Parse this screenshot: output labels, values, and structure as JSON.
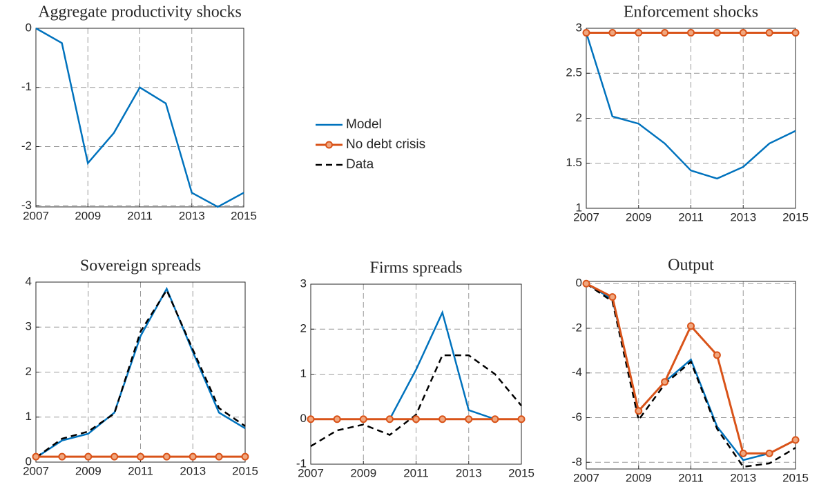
{
  "chart_data": [
    {
      "type": "line",
      "title": "Aggregate productivity shocks",
      "x": [
        2007,
        2008,
        2009,
        2010,
        2011,
        2012,
        2013,
        2014,
        2015
      ],
      "series": [
        {
          "name": "Model",
          "color": "#0072bd",
          "values": [
            0,
            -0.25,
            -2.28,
            -1.77,
            -1.0,
            -1.27,
            -2.78,
            -3.02,
            -2.78
          ]
        }
      ],
      "xlim": [
        2007,
        2015
      ],
      "xticks": [
        2007,
        2009,
        2011,
        2013,
        2015
      ],
      "ylim": [
        -3.02,
        0
      ],
      "yticks": [
        -3,
        -2,
        -1,
        0
      ],
      "grid": true
    },
    {
      "type": "line",
      "title": "Enforcement shocks",
      "x": [
        2007,
        2008,
        2009,
        2010,
        2011,
        2012,
        2013,
        2014,
        2015
      ],
      "series": [
        {
          "name": "Model",
          "color": "#0072bd",
          "values": [
            2.95,
            2.02,
            1.94,
            1.72,
            1.42,
            1.33,
            1.46,
            1.72,
            1.86
          ]
        },
        {
          "name": "No debt crisis",
          "color": "#d95319",
          "marker": "o",
          "values": [
            2.95,
            2.95,
            2.95,
            2.95,
            2.95,
            2.95,
            2.95,
            2.95,
            2.95
          ]
        }
      ],
      "xlim": [
        2007,
        2015
      ],
      "xticks": [
        2007,
        2009,
        2011,
        2013,
        2015
      ],
      "ylim": [
        1,
        3
      ],
      "yticks": [
        1,
        1.5,
        2,
        2.5,
        3
      ],
      "grid": true
    },
    {
      "type": "line",
      "title": "Sovereign spreads",
      "x": [
        2007,
        2008,
        2009,
        2010,
        2011,
        2012,
        2013,
        2014,
        2015
      ],
      "series": [
        {
          "name": "Model",
          "color": "#0072bd",
          "values": [
            0.1,
            0.48,
            0.63,
            1.1,
            2.8,
            3.85,
            2.45,
            1.1,
            0.75
          ]
        },
        {
          "name": "No debt crisis",
          "color": "#d95319",
          "marker": "o",
          "values": [
            0.12,
            0.12,
            0.12,
            0.12,
            0.12,
            0.12,
            0.12,
            0.12,
            0.12
          ]
        },
        {
          "name": "Data",
          "color": "#000000",
          "dash": true,
          "values": [
            0.1,
            0.52,
            0.68,
            1.08,
            2.9,
            3.82,
            2.5,
            1.2,
            0.8
          ]
        }
      ],
      "xlim": [
        2007,
        2015
      ],
      "xticks": [
        2007,
        2009,
        2011,
        2013,
        2015
      ],
      "ylim": [
        0,
        4
      ],
      "yticks": [
        0,
        1,
        2,
        3,
        4
      ],
      "grid": true
    },
    {
      "type": "line",
      "title": "Firms spreads",
      "x": [
        2007,
        2008,
        2009,
        2010,
        2011,
        2012,
        2013,
        2014,
        2015
      ],
      "series": [
        {
          "name": "Model",
          "color": "#0072bd",
          "values": [
            0,
            0,
            0,
            0,
            1.1,
            2.37,
            0.2,
            0,
            0
          ]
        },
        {
          "name": "No debt crisis",
          "color": "#d95319",
          "marker": "o",
          "values": [
            0,
            0,
            0,
            0,
            0,
            0,
            0,
            0,
            0
          ]
        },
        {
          "name": "Data",
          "color": "#000000",
          "dash": true,
          "values": [
            -0.6,
            -0.25,
            -0.12,
            -0.35,
            0.1,
            1.42,
            1.42,
            1.0,
            0.3
          ]
        }
      ],
      "xlim": [
        2007,
        2015
      ],
      "xticks": [
        2007,
        2009,
        2011,
        2013,
        2015
      ],
      "ylim": [
        -1,
        3
      ],
      "yticks": [
        -1,
        0,
        1,
        2,
        3
      ],
      "grid": true
    },
    {
      "type": "line",
      "title": "Output",
      "x": [
        2007,
        2008,
        2009,
        2010,
        2011,
        2012,
        2013,
        2014,
        2015
      ],
      "series": [
        {
          "name": "Model",
          "color": "#0072bd",
          "values": [
            0,
            -0.7,
            -5.7,
            -4.4,
            -3.4,
            -6.4,
            -7.9,
            -7.6,
            -7.0
          ]
        },
        {
          "name": "No debt crisis",
          "color": "#d95319",
          "marker": "o",
          "values": [
            0,
            -0.6,
            -5.7,
            -4.4,
            -1.9,
            -3.2,
            -7.6,
            -7.6,
            -7.0
          ]
        },
        {
          "name": "Data",
          "color": "#000000",
          "dash": true,
          "values": [
            0,
            -0.8,
            -6.1,
            -4.5,
            -3.5,
            -6.5,
            -8.2,
            -8.05,
            -7.35
          ]
        }
      ],
      "xlim": [
        2007,
        2015
      ],
      "xticks": [
        2007,
        2009,
        2011,
        2013,
        2015
      ],
      "ylim": [
        -8.3,
        0.1
      ],
      "yticks": [
        -8,
        -6,
        -4,
        -2,
        0
      ],
      "grid": true
    }
  ]
}
